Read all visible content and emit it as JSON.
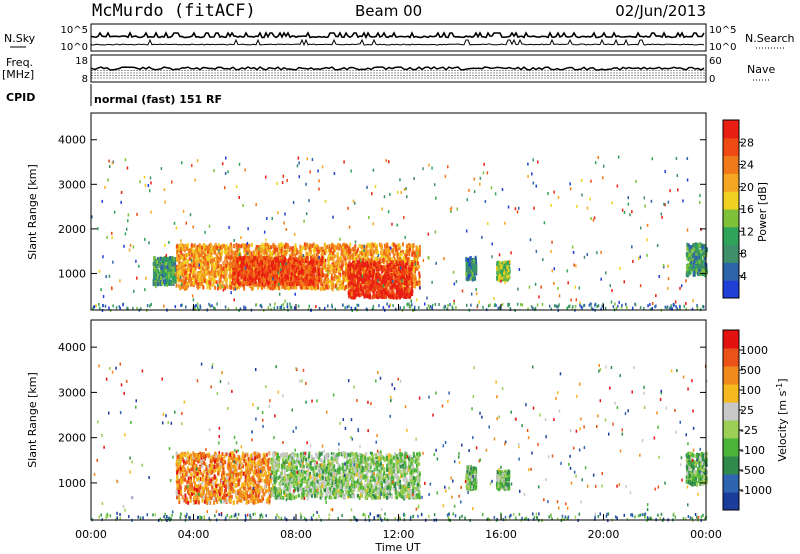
{
  "header": {
    "station": "McMurdo (fitACF)",
    "beam": "Beam 00",
    "date": "02/Jun/2013"
  },
  "status_panels": {
    "nsky_label": "N.Sky",
    "nsearch_label": "N.Search",
    "nsky_ticks": [
      "10^5",
      "10^0"
    ],
    "freq_label": "Freq.",
    "freq_unit": "[MHz]",
    "freq_ticks": [
      "18",
      "8"
    ],
    "nave_label": "Nave",
    "nave_ticks": [
      "60",
      "0"
    ],
    "cpid_label": "CPID",
    "cpid_value": "normal (fast) 151 RF"
  },
  "x_axis": {
    "label": "Time UT",
    "ticks": [
      "00:00",
      "04:00",
      "08:00",
      "12:00",
      "16:00",
      "20:00",
      "00:00"
    ],
    "range_hours": [
      0,
      24
    ]
  },
  "colors": {
    "power_scale": [
      "#1f3fd6",
      "#2e64a8",
      "#3f8f6a",
      "#2fa35a",
      "#7fc23a",
      "#f0d020",
      "#f5a623",
      "#f07a1a",
      "#ef4a14",
      "#e81e12"
    ],
    "velocity_scale": [
      "#1c3c9c",
      "#2e64b0",
      "#2f8a4c",
      "#4bb33a",
      "#9ccf54",
      "#c8c8c8",
      "#f5b81d",
      "#f08a1c",
      "#ea5318",
      "#e3110f"
    ]
  },
  "chart_data": [
    {
      "type": "heatmap",
      "title": "",
      "xlabel": "Time UT",
      "ylabel": "Slant Range [km]",
      "xlim": [
        0,
        24
      ],
      "ylim": [
        180,
        4600
      ],
      "yticks": [
        "1000",
        "2000",
        "3000",
        "4000"
      ],
      "colorbar": {
        "label": "Power [dB]",
        "ticks": [
          "4",
          "8",
          "12",
          "16",
          "20",
          "24",
          "28"
        ],
        "range": [
          0,
          32
        ]
      },
      "scatter_regions": [
        {
          "t": [
            2.4,
            3.3
          ],
          "r": [
            800,
            1400
          ],
          "value": 10
        },
        {
          "t": [
            3.3,
            12.8
          ],
          "r": [
            700,
            1700
          ],
          "value": 22
        },
        {
          "t": [
            5.5,
            9.0
          ],
          "r": [
            800,
            1400
          ],
          "value": 28
        },
        {
          "t": [
            10.0,
            12.5
          ],
          "r": [
            500,
            1300
          ],
          "value": 30
        },
        {
          "t": [
            14.6,
            15.0
          ],
          "r": [
            900,
            1400
          ],
          "value": 8
        },
        {
          "t": [
            15.8,
            16.3
          ],
          "r": [
            900,
            1300
          ],
          "value": 14
        },
        {
          "t": [
            23.2,
            24.0
          ],
          "r": [
            1000,
            1700
          ],
          "value": 10
        }
      ]
    },
    {
      "type": "heatmap",
      "title": "",
      "xlabel": "Time UT",
      "ylabel": "Slant Range [km]",
      "xlim": [
        0,
        24
      ],
      "ylim": [
        180,
        4600
      ],
      "yticks": [
        "1000",
        "2000",
        "3000",
        "4000"
      ],
      "colorbar": {
        "label": "Velocity [m s-1]",
        "ticks": [
          "1000",
          "500",
          "100",
          "25",
          "-25",
          "-100",
          "-500",
          "-1000"
        ],
        "range": [
          -1200,
          1200
        ]
      },
      "scatter_regions": [
        {
          "t": [
            3.3,
            7.0
          ],
          "r": [
            600,
            1700
          ],
          "value": 600
        },
        {
          "t": [
            7.0,
            12.8
          ],
          "r": [
            700,
            1700
          ],
          "value": -150
        },
        {
          "t": [
            14.6,
            15.0
          ],
          "r": [
            900,
            1400
          ],
          "value": -200
        },
        {
          "t": [
            15.8,
            16.3
          ],
          "r": [
            900,
            1300
          ],
          "value": -250
        },
        {
          "t": [
            23.2,
            24.0
          ],
          "r": [
            1000,
            1700
          ],
          "value": -300
        }
      ]
    }
  ]
}
